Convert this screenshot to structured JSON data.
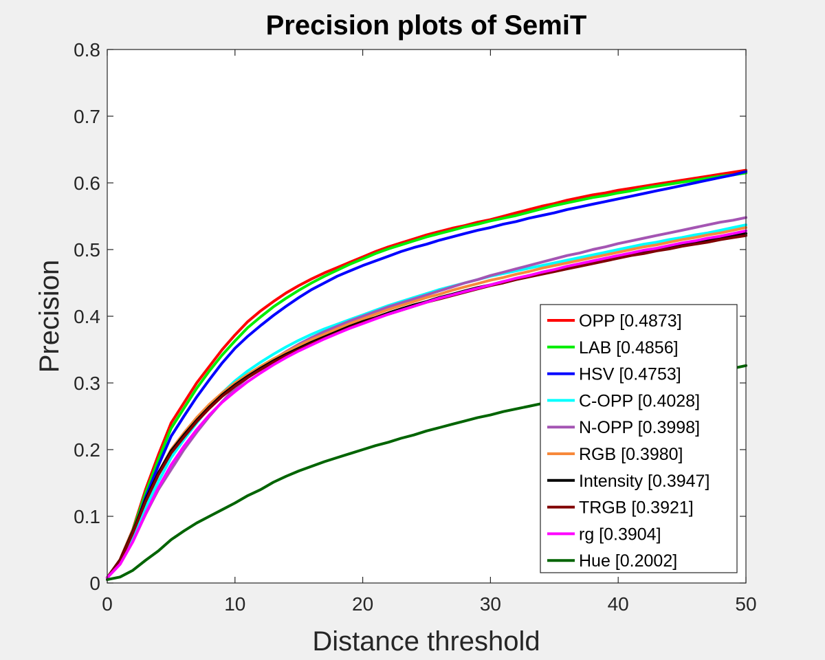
{
  "chart_data": {
    "type": "line",
    "title": "Precision plots of SemiT",
    "xlabel": "Distance threshold",
    "ylabel": "Precision",
    "xlim": [
      0,
      50
    ],
    "ylim": [
      0,
      0.8
    ],
    "xticks": [
      0,
      10,
      20,
      30,
      40,
      50
    ],
    "xtick_labels": [
      "0",
      "10",
      "20",
      "30",
      "40",
      "50"
    ],
    "yticks": [
      0,
      0.1,
      0.2,
      0.3,
      0.4,
      0.5,
      0.6,
      0.7,
      0.8
    ],
    "ytick_labels": [
      "0",
      "0.1",
      "0.2",
      "0.3",
      "0.4",
      "0.5",
      "0.6",
      "0.7",
      "0.8"
    ],
    "grid": false,
    "legend_position": "bottom-right",
    "x": [
      0,
      1,
      2,
      3,
      4,
      5,
      6,
      7,
      8,
      9,
      10,
      11,
      12,
      13,
      14,
      15,
      16,
      17,
      18,
      19,
      20,
      21,
      22,
      23,
      24,
      25,
      26,
      27,
      28,
      29,
      30,
      31,
      32,
      33,
      34,
      35,
      36,
      37,
      38,
      39,
      40,
      41,
      42,
      43,
      44,
      45,
      46,
      47,
      48,
      49,
      50
    ],
    "series": [
      {
        "name": "OPP [0.4873]",
        "color": "#ff0000",
        "values": [
          0.008,
          0.035,
          0.08,
          0.14,
          0.192,
          0.24,
          0.27,
          0.3,
          0.325,
          0.35,
          0.372,
          0.392,
          0.408,
          0.422,
          0.435,
          0.446,
          0.456,
          0.465,
          0.473,
          0.481,
          0.489,
          0.497,
          0.504,
          0.51,
          0.516,
          0.522,
          0.527,
          0.532,
          0.536,
          0.541,
          0.545,
          0.55,
          0.555,
          0.56,
          0.565,
          0.569,
          0.574,
          0.578,
          0.582,
          0.585,
          0.589,
          0.592,
          0.595,
          0.598,
          0.601,
          0.604,
          0.607,
          0.61,
          0.613,
          0.616,
          0.619
        ]
      },
      {
        "name": "LAB [0.4856]",
        "color": "#00ee00",
        "values": [
          0.008,
          0.034,
          0.078,
          0.135,
          0.185,
          0.232,
          0.262,
          0.292,
          0.318,
          0.342,
          0.363,
          0.383,
          0.399,
          0.414,
          0.427,
          0.439,
          0.45,
          0.46,
          0.469,
          0.478,
          0.486,
          0.494,
          0.501,
          0.507,
          0.513,
          0.519,
          0.524,
          0.529,
          0.534,
          0.538,
          0.543,
          0.547,
          0.551,
          0.556,
          0.561,
          0.566,
          0.57,
          0.574,
          0.578,
          0.581,
          0.585,
          0.588,
          0.592,
          0.595,
          0.598,
          0.601,
          0.604,
          0.607,
          0.61,
          0.612,
          0.615
        ]
      },
      {
        "name": "HSV [0.4753]",
        "color": "#0000ff",
        "values": [
          0.008,
          0.033,
          0.075,
          0.128,
          0.176,
          0.22,
          0.25,
          0.279,
          0.305,
          0.33,
          0.352,
          0.37,
          0.386,
          0.401,
          0.415,
          0.428,
          0.44,
          0.45,
          0.46,
          0.468,
          0.476,
          0.483,
          0.49,
          0.497,
          0.503,
          0.508,
          0.514,
          0.519,
          0.524,
          0.529,
          0.533,
          0.538,
          0.542,
          0.547,
          0.551,
          0.555,
          0.56,
          0.564,
          0.568,
          0.572,
          0.576,
          0.58,
          0.584,
          0.588,
          0.592,
          0.596,
          0.6,
          0.604,
          0.608,
          0.612,
          0.617
        ]
      },
      {
        "name": "C-OPP [0.4028]",
        "color": "#00ffff",
        "values": [
          0.008,
          0.03,
          0.068,
          0.113,
          0.152,
          0.188,
          0.215,
          0.24,
          0.264,
          0.285,
          0.303,
          0.318,
          0.331,
          0.343,
          0.354,
          0.364,
          0.373,
          0.381,
          0.388,
          0.395,
          0.402,
          0.409,
          0.416,
          0.422,
          0.428,
          0.434,
          0.44,
          0.445,
          0.45,
          0.455,
          0.46,
          0.464,
          0.468,
          0.472,
          0.476,
          0.48,
          0.484,
          0.488,
          0.492,
          0.496,
          0.5,
          0.504,
          0.508,
          0.511,
          0.515,
          0.518,
          0.522,
          0.525,
          0.529,
          0.533,
          0.537
        ]
      },
      {
        "name": "N-OPP [0.3998]",
        "color": "#a455b3",
        "values": [
          0.008,
          0.028,
          0.062,
          0.103,
          0.14,
          0.17,
          0.2,
          0.226,
          0.25,
          0.272,
          0.292,
          0.308,
          0.322,
          0.335,
          0.347,
          0.358,
          0.368,
          0.377,
          0.385,
          0.393,
          0.4,
          0.407,
          0.414,
          0.42,
          0.426,
          0.432,
          0.438,
          0.444,
          0.45,
          0.455,
          0.461,
          0.466,
          0.471,
          0.476,
          0.481,
          0.486,
          0.491,
          0.495,
          0.5,
          0.504,
          0.509,
          0.513,
          0.517,
          0.521,
          0.525,
          0.529,
          0.533,
          0.537,
          0.541,
          0.544,
          0.548
        ]
      },
      {
        "name": "RGB [0.3980]",
        "color": "#f7893b",
        "values": [
          0.008,
          0.033,
          0.075,
          0.124,
          0.165,
          0.2,
          0.225,
          0.248,
          0.268,
          0.285,
          0.3,
          0.313,
          0.325,
          0.336,
          0.346,
          0.356,
          0.365,
          0.373,
          0.381,
          0.389,
          0.396,
          0.403,
          0.41,
          0.416,
          0.422,
          0.428,
          0.433,
          0.439,
          0.444,
          0.449,
          0.454,
          0.458,
          0.463,
          0.467,
          0.472,
          0.476,
          0.48,
          0.484,
          0.488,
          0.492,
          0.496,
          0.5,
          0.504,
          0.507,
          0.511,
          0.515,
          0.518,
          0.522,
          0.525,
          0.529,
          0.533
        ]
      },
      {
        "name": "Intensity [0.3947]",
        "color": "#000000",
        "values": [
          0.008,
          0.034,
          0.077,
          0.125,
          0.165,
          0.198,
          0.222,
          0.244,
          0.264,
          0.282,
          0.297,
          0.31,
          0.322,
          0.333,
          0.343,
          0.352,
          0.361,
          0.369,
          0.377,
          0.385,
          0.392,
          0.398,
          0.405,
          0.411,
          0.417,
          0.422,
          0.428,
          0.433,
          0.438,
          0.443,
          0.447,
          0.452,
          0.456,
          0.461,
          0.465,
          0.469,
          0.473,
          0.477,
          0.481,
          0.485,
          0.489,
          0.492,
          0.496,
          0.5,
          0.503,
          0.507,
          0.51,
          0.513,
          0.517,
          0.52,
          0.524
        ]
      },
      {
        "name": "TRGB [0.3921]",
        "color": "#800000",
        "values": [
          0.008,
          0.033,
          0.075,
          0.122,
          0.162,
          0.195,
          0.219,
          0.242,
          0.262,
          0.28,
          0.295,
          0.308,
          0.32,
          0.331,
          0.341,
          0.35,
          0.359,
          0.367,
          0.375,
          0.383,
          0.39,
          0.397,
          0.403,
          0.409,
          0.415,
          0.421,
          0.426,
          0.431,
          0.436,
          0.441,
          0.446,
          0.45,
          0.455,
          0.459,
          0.463,
          0.467,
          0.471,
          0.475,
          0.479,
          0.483,
          0.487,
          0.491,
          0.494,
          0.498,
          0.501,
          0.505,
          0.508,
          0.511,
          0.515,
          0.518,
          0.521
        ]
      },
      {
        "name": "rg [0.3904]",
        "color": "#ff00ff",
        "values": [
          0.008,
          0.028,
          0.062,
          0.104,
          0.143,
          0.177,
          0.205,
          0.23,
          0.252,
          0.271,
          0.287,
          0.302,
          0.315,
          0.327,
          0.338,
          0.348,
          0.357,
          0.366,
          0.374,
          0.382,
          0.389,
          0.396,
          0.403,
          0.409,
          0.415,
          0.421,
          0.427,
          0.432,
          0.437,
          0.442,
          0.447,
          0.452,
          0.457,
          0.461,
          0.466,
          0.47,
          0.475,
          0.479,
          0.483,
          0.487,
          0.491,
          0.495,
          0.499,
          0.502,
          0.506,
          0.51,
          0.513,
          0.517,
          0.52,
          0.524,
          0.528
        ]
      },
      {
        "name": "Hue [0.2002]",
        "color": "#006400",
        "values": [
          0.005,
          0.009,
          0.019,
          0.034,
          0.048,
          0.065,
          0.078,
          0.09,
          0.1,
          0.11,
          0.12,
          0.131,
          0.14,
          0.151,
          0.16,
          0.168,
          0.175,
          0.182,
          0.188,
          0.194,
          0.2,
          0.206,
          0.211,
          0.217,
          0.222,
          0.228,
          0.233,
          0.238,
          0.243,
          0.248,
          0.252,
          0.257,
          0.261,
          0.265,
          0.269,
          0.273,
          0.277,
          0.281,
          0.285,
          0.289,
          0.292,
          0.296,
          0.299,
          0.303,
          0.306,
          0.309,
          0.312,
          0.315,
          0.318,
          0.322,
          0.326
        ]
      }
    ]
  }
}
